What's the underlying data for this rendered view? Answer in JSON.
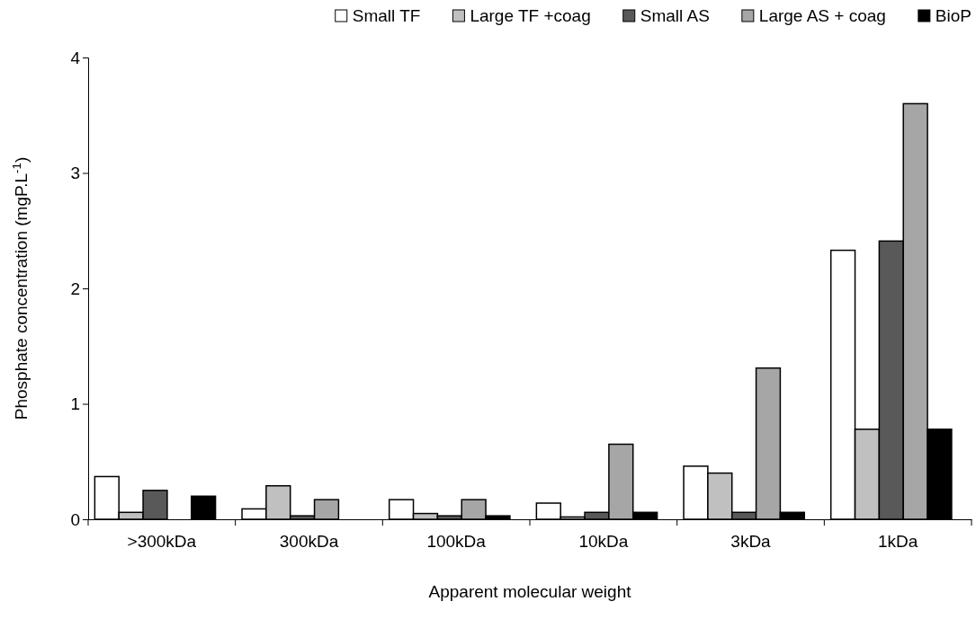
{
  "chart_data": {
    "type": "bar",
    "xlabel": "Apparent molecular weight",
    "ylabel": "Phosphate concentration (mgP.L$^{-1}$)",
    "categories": [
      ">300kDa",
      "300kDa",
      "100kDa",
      "10kDa",
      "3kDa",
      "1kDa"
    ],
    "series": [
      {
        "name": "Small TF",
        "color": "#ffffff",
        "values": [
          0.37,
          0.09,
          0.17,
          0.14,
          0.46,
          2.33
        ]
      },
      {
        "name": "Large TF +coag",
        "color": "#c0c0c0",
        "values": [
          0.06,
          0.29,
          0.05,
          0.02,
          0.4,
          0.78
        ]
      },
      {
        "name": "Small AS",
        "color": "#595959",
        "values": [
          0.25,
          0.03,
          0.03,
          0.06,
          0.06,
          2.41
        ]
      },
      {
        "name": "Large AS + coag",
        "color": "#a6a6a6",
        "values": [
          0,
          0.17,
          0.17,
          0.65,
          1.31,
          3.6
        ]
      },
      {
        "name": "BioP",
        "color": "#000000",
        "values": [
          0.2,
          0,
          0.03,
          0.06,
          0.06,
          0.78
        ]
      }
    ],
    "ylim": [
      0,
      4
    ],
    "yticks": [
      0,
      1,
      2,
      3,
      4
    ],
    "legend": "top"
  }
}
